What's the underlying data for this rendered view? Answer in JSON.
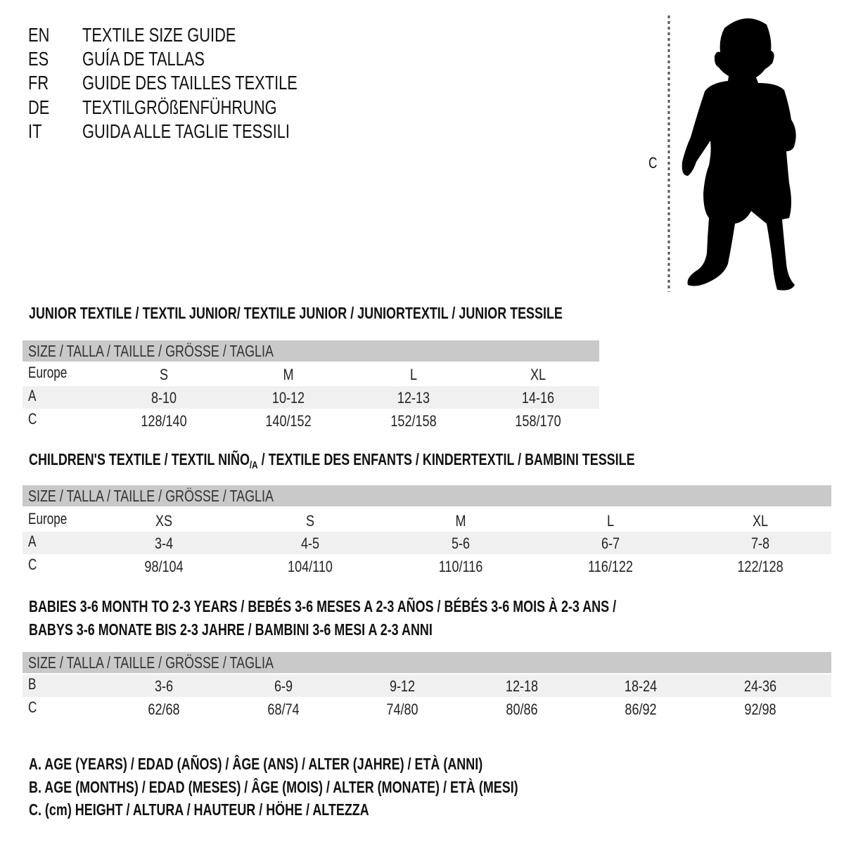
{
  "languages": [
    {
      "code": "EN",
      "text": "TEXTILE SIZE GUIDE"
    },
    {
      "code": "ES",
      "text": "GUÍA DE TALLAS"
    },
    {
      "code": "FR",
      "text": "GUIDE DES TAILLES TEXTILE"
    },
    {
      "code": "DE",
      "text": "TEXTILGRÖßENFÜHRUNG"
    },
    {
      "code": "IT",
      "text": "GUIDA ALLE TAGLIE TESSILI"
    }
  ],
  "figure": {
    "measure_label": "C",
    "icon": "child-silhouette-icon"
  },
  "junior": {
    "title": "JUNIOR TEXTILE / TEXTIL JUNIOR/ TEXTILE JUNIOR / JUNIORTEXTIL / JUNIOR TESSILE",
    "header": "SIZE / TALLA / TAILLE / GRÖSSE / TAGLIA",
    "rows": [
      {
        "label": "Europe",
        "values": [
          "S",
          "M",
          "L",
          "XL"
        ]
      },
      {
        "label": "A",
        "values": [
          "8-10",
          "10-12",
          "12-13",
          "14-16"
        ]
      },
      {
        "label": "C",
        "values": [
          "128/140",
          "140/152",
          "152/158",
          "158/170"
        ]
      }
    ]
  },
  "children": {
    "title_pre": "CHILDREN'S TEXTILE / TEXTIL NIÑO",
    "title_sub": "/A",
    "title_post": " / TEXTILE DES ENFANTS / KINDERTEXTIL / BAMBINI TESSILE",
    "header": "SIZE / TALLA / TAILLE / GRÖSSE / TAGLIA",
    "rows": [
      {
        "label": "Europe",
        "values": [
          "XS",
          "S",
          "M",
          "L",
          "XL"
        ]
      },
      {
        "label": "A",
        "values": [
          "3-4",
          "4-5",
          "5-6",
          "6-7",
          "7-8"
        ]
      },
      {
        "label": "C",
        "values": [
          "98/104",
          "104/110",
          "110/116",
          "116/122",
          "122/128"
        ]
      }
    ]
  },
  "babies": {
    "title_line1": "BABIES 3-6 MONTH TO 2-3 YEARS / BEBÉS 3-6 MESES A 2-3 AÑOS / BÉBÉS 3-6 MOIS À 2-3 ANS /",
    "title_line2": "BABYS 3-6 MONATE BIS 2-3 JAHRE / BAMBINI 3-6 MESI A 2-3 ANNI",
    "header": "SIZE / TALLA / TAILLE / GRÖSSE / TAGLIA",
    "rows": [
      {
        "label": "B",
        "values": [
          "3-6",
          "6-9",
          "9-12",
          "12-18",
          "18-24",
          "24-36"
        ]
      },
      {
        "label": "C",
        "values": [
          "62/68",
          "68/74",
          "74/80",
          "80/86",
          "86/92",
          "92/98"
        ]
      }
    ]
  },
  "legend": [
    "A. AGE (YEARS) / EDAD (AÑOS) / ÂGE (ANS) / ALTER (JAHRE) / ETÀ (ANNI)",
    "B. AGE (MONTHS) / EDAD (MESES) / ÂGE (MOIS) / ALTER (MONATE) / ETÀ (MESI)",
    "C. (cm) HEIGHT / ALTURA / HAUTEUR / HÖHE / ALTEZZA"
  ],
  "colors": {
    "header_bar": "#c9c9c9",
    "row_shade": "#f0f0f0",
    "text": "#111111"
  }
}
